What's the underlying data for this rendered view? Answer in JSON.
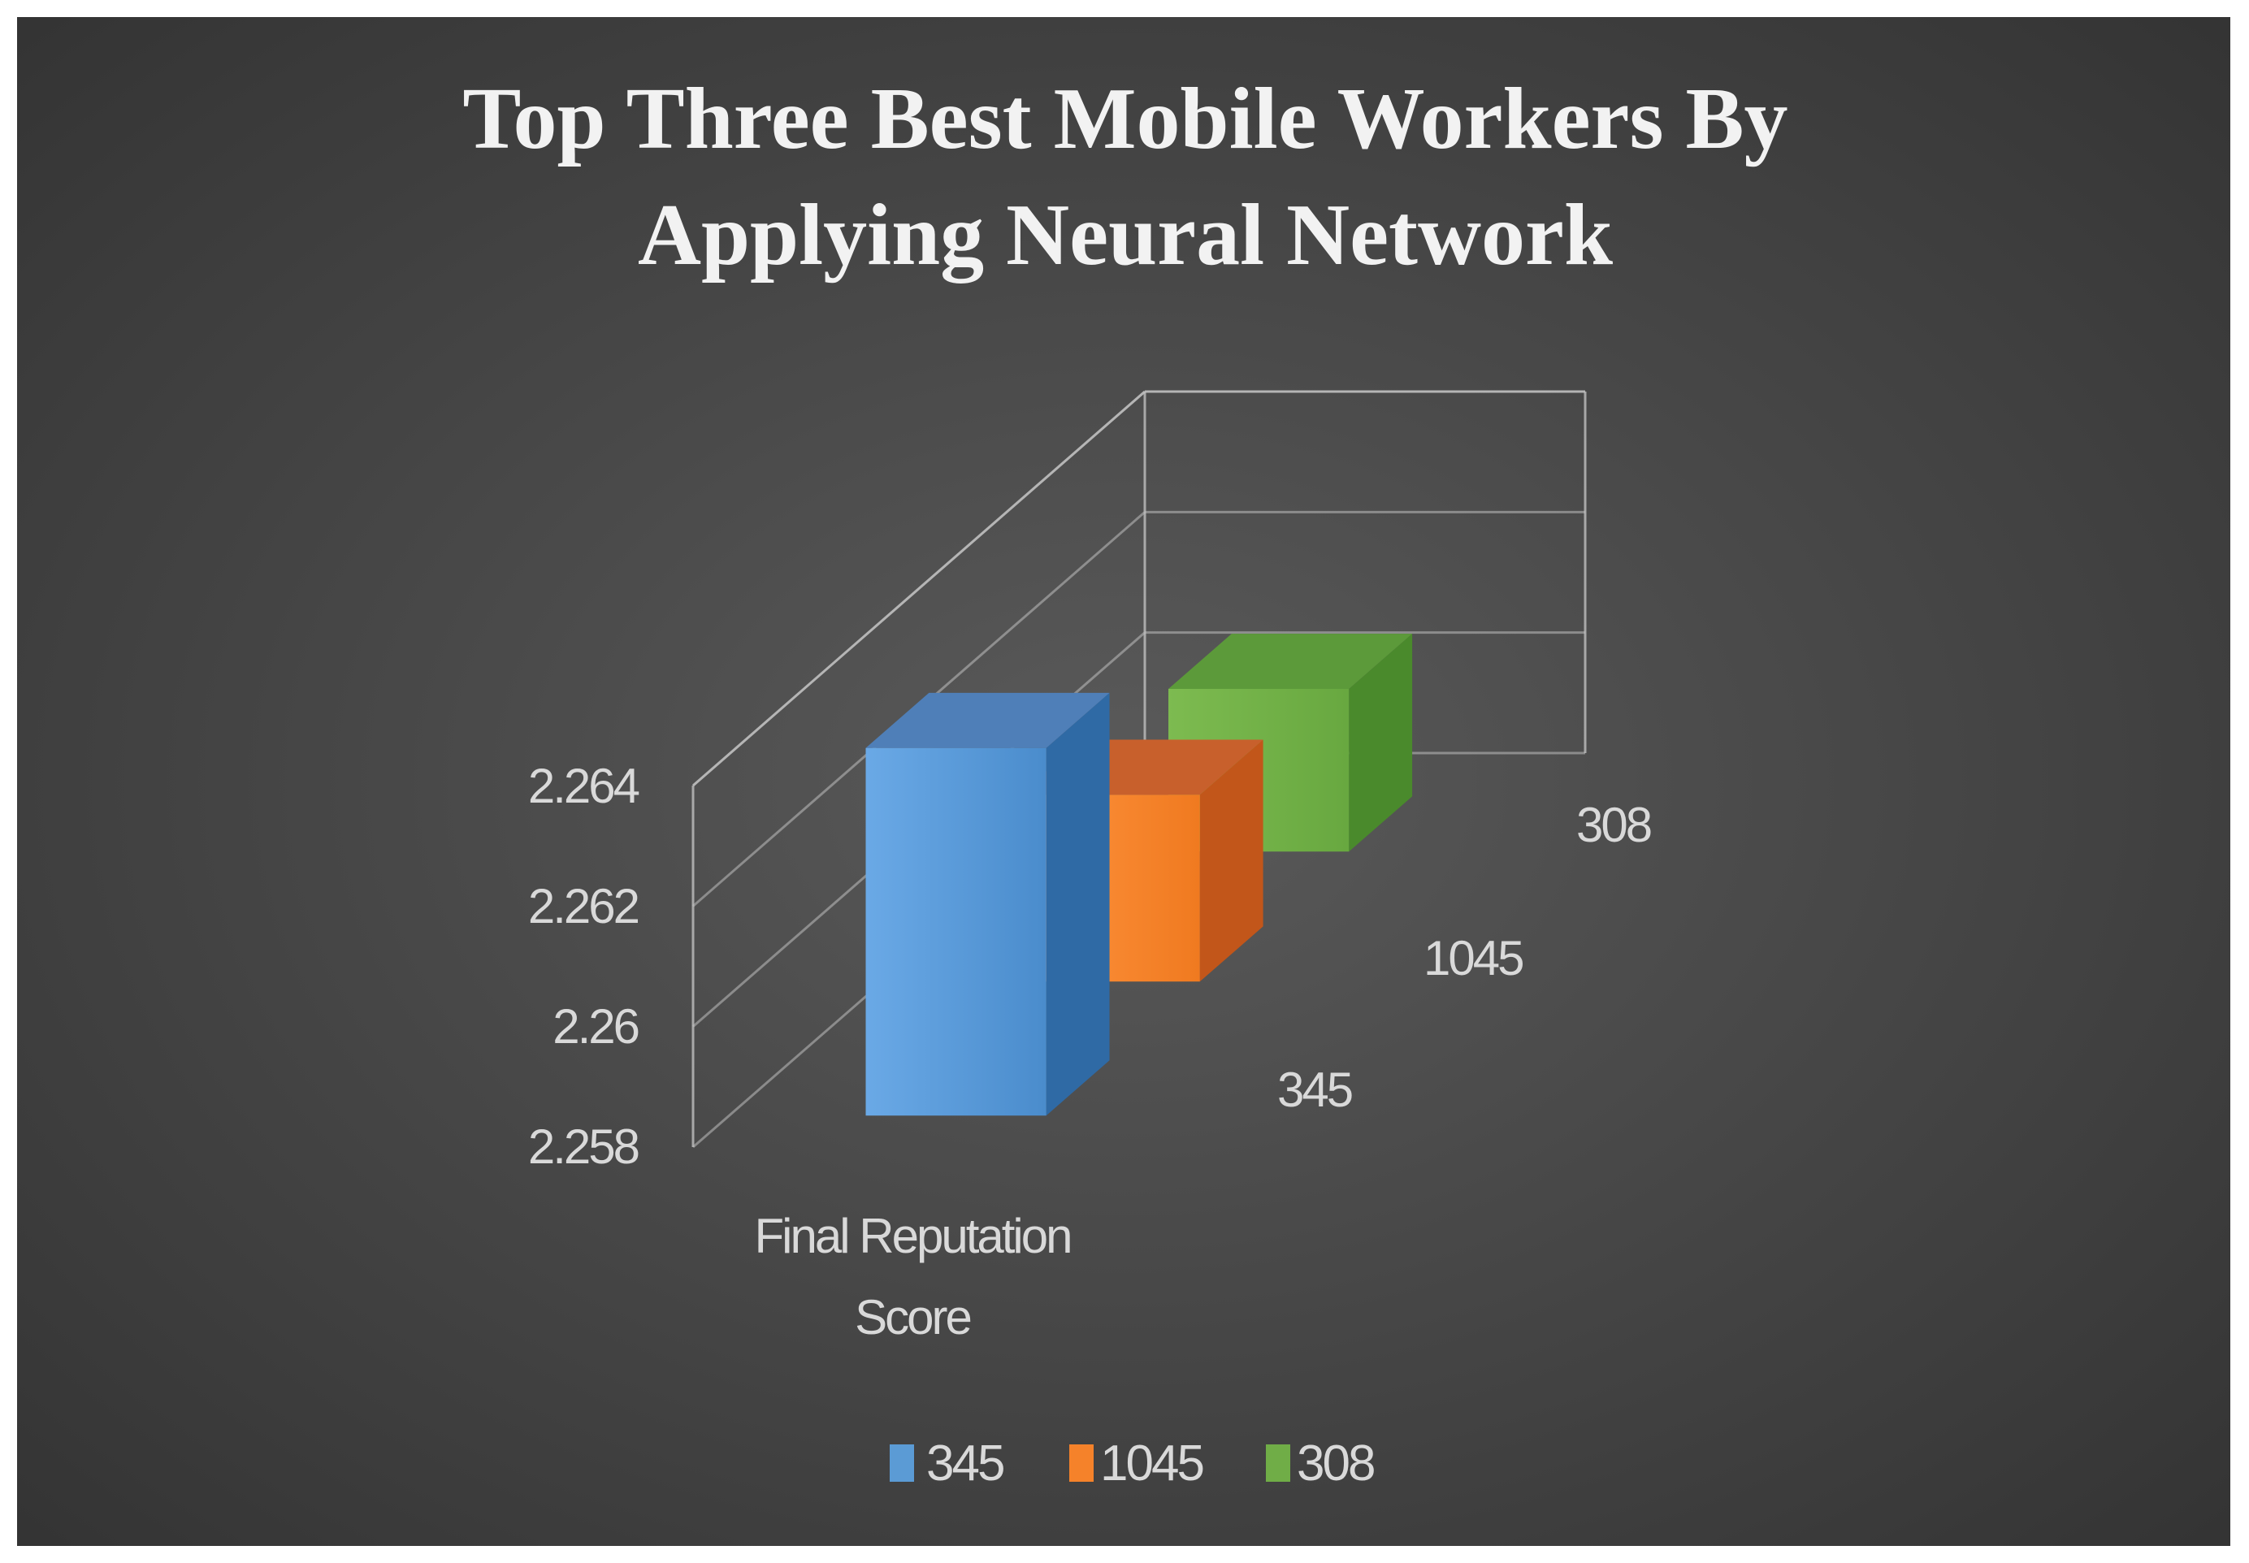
{
  "chart_data": {
    "type": "bar",
    "subtype": "3d-column",
    "title": "Top Three Best Mobile Workers By Applying Neural Network",
    "title_lines": [
      "Top Three Best Mobile Workers By",
      "Applying Neural Network"
    ],
    "categories": [
      "Final Reputation Score"
    ],
    "category_label_lines": [
      "Final Reputation",
      "Score"
    ],
    "series": [
      {
        "name": "345",
        "values": [
          2.2641
        ],
        "color": "#5B9BD5"
      },
      {
        "name": "1045",
        "values": [
          2.2611
        ],
        "color": "#F5822A"
      },
      {
        "name": "308",
        "values": [
          2.2607
        ],
        "color": "#70AD47"
      }
    ],
    "depth_labels": [
      "345",
      "1045",
      "308"
    ],
    "yticks": [
      "2.258",
      "2.26",
      "2.262",
      "2.264"
    ],
    "ylim": [
      2.258,
      2.264
    ],
    "xlabel": "",
    "ylabel": "",
    "grid": true,
    "legend": "bottom",
    "background": "#4a4a4a"
  }
}
